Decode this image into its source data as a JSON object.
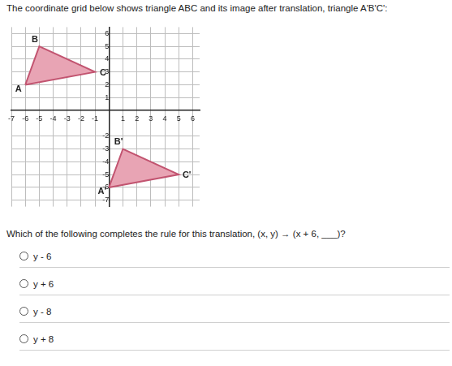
{
  "header": "The coordinate grid below shows triangle ABC and its image after translation, triangle A'B'C':",
  "chart_data": {
    "type": "scatter",
    "series": [
      {
        "x": [
          -6,
          -5,
          -1
        ],
        "values": [
          2,
          5,
          3
        ],
        "point_labels": [
          "A",
          "B",
          "C"
        ],
        "color": "#e8a4b4"
      },
      {
        "x": [
          0,
          1,
          5
        ],
        "values": [
          -6,
          -3,
          -5
        ],
        "point_labels": [
          "A'",
          "B'",
          "C'"
        ],
        "color": "#e8a4b4"
      }
    ],
    "xlim": [
      -7,
      6.5
    ],
    "ylim": [
      -7.5,
      6.5
    ],
    "xticks": [
      -7,
      -6,
      -5,
      -4,
      -3,
      -2,
      -1,
      1,
      2,
      3,
      4,
      5,
      6
    ],
    "yticks": [
      -7,
      -6,
      -5,
      -4,
      -3,
      -2,
      1,
      2,
      3,
      4,
      5,
      6
    ],
    "grid": true
  },
  "question": "Which of the following completes the rule for this translation, (x, y) → (x + 6, ___)?",
  "options": [
    "y - 6",
    "y + 6",
    "y - 8",
    "y + 8"
  ]
}
